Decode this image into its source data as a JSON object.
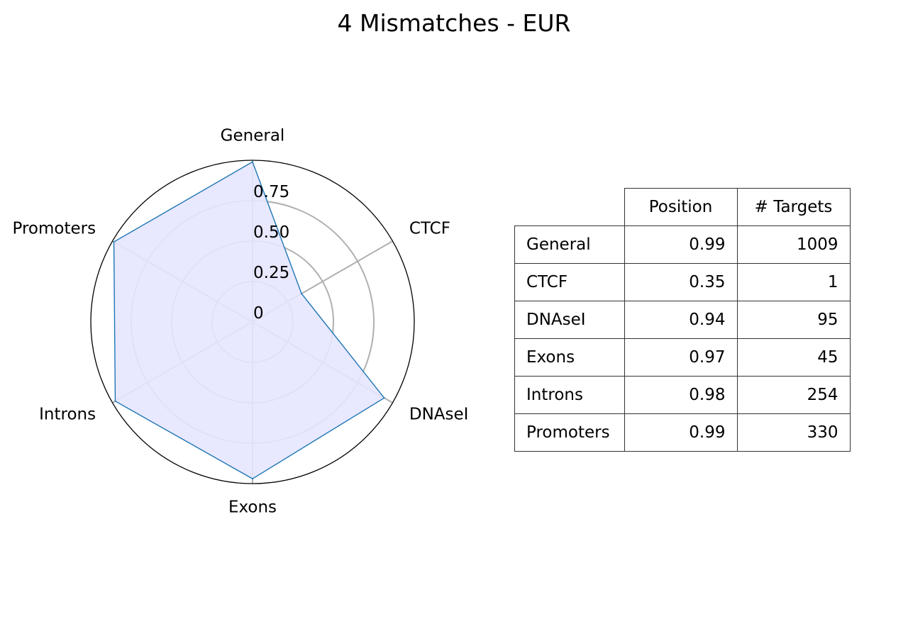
{
  "title": "4 Mismatches - EUR",
  "colors": {
    "series_line": "#1f77b4",
    "series_fill": "#e5e5ff",
    "grid": "#b0b0b0",
    "outer_ring": "#000000"
  },
  "chart_data": {
    "type": "radar",
    "title": "4 Mismatches - EUR",
    "categories": [
      "General",
      "CTCF",
      "DNAseI",
      "Exons",
      "Introns",
      "Promoters"
    ],
    "values": [
      0.99,
      0.35,
      0.94,
      0.97,
      0.98,
      0.99
    ],
    "rlim": [
      0,
      1
    ],
    "radial_ticks": [
      0,
      0.25,
      0.5,
      0.75
    ],
    "radial_tick_labels": [
      "0",
      "0.25",
      "0.50",
      "0.75"
    ],
    "grid": true,
    "legend": false
  },
  "table": {
    "columns": [
      "Position",
      "# Targets"
    ],
    "rows": [
      {
        "label": "General",
        "position": "0.99",
        "targets": "1009"
      },
      {
        "label": "CTCF",
        "position": "0.35",
        "targets": "1"
      },
      {
        "label": "DNAseI",
        "position": "0.94",
        "targets": "95"
      },
      {
        "label": "Exons",
        "position": "0.97",
        "targets": "45"
      },
      {
        "label": "Introns",
        "position": "0.98",
        "targets": "254"
      },
      {
        "label": "Promoters",
        "position": "0.99",
        "targets": "330"
      }
    ]
  }
}
